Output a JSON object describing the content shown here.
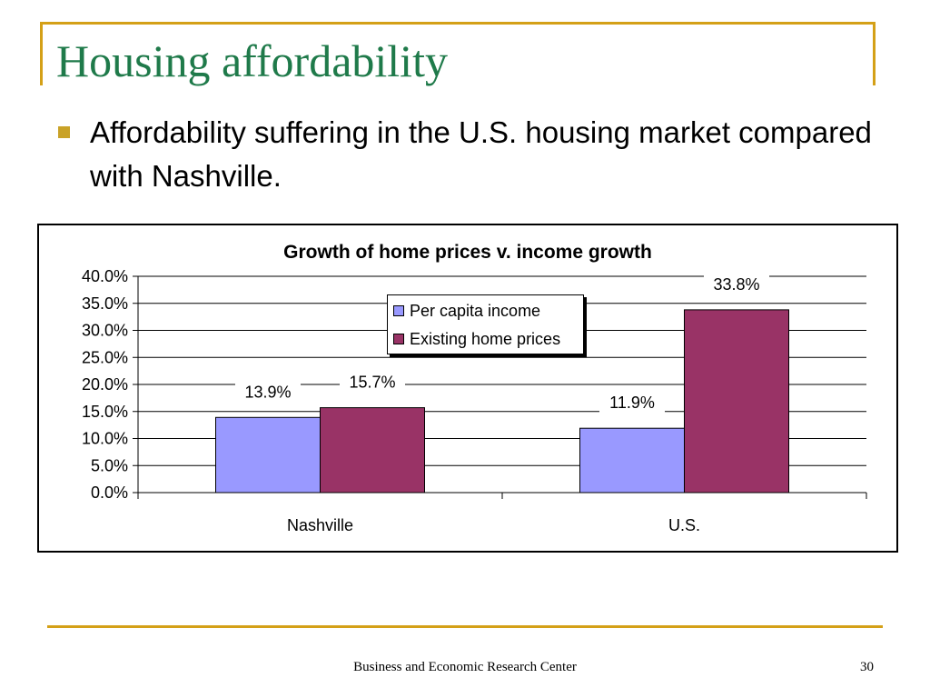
{
  "slide": {
    "title": "Housing affordability",
    "bullet": "Affordability suffering in the U.S. housing market compared with Nashville.",
    "footer": "Business and Economic Research Center",
    "page_number": "30"
  },
  "colors": {
    "title": "#1f7a4a",
    "accent_rule": "#d4a017",
    "bullet": "#c9a227"
  },
  "chart_data": {
    "type": "bar",
    "title": "Growth of home prices v. income growth",
    "categories": [
      "Nashville",
      "U.S."
    ],
    "series": [
      {
        "name": "Per capita income",
        "values": [
          13.9,
          11.9
        ],
        "labels": [
          "13.9%",
          "11.9%"
        ],
        "color": "#9999ff"
      },
      {
        "name": "Existing home prices",
        "values": [
          15.7,
          33.8
        ],
        "labels": [
          "15.7%",
          "33.8%"
        ],
        "color": "#993366"
      }
    ],
    "ylim": [
      0,
      40
    ],
    "yticks": [
      0,
      5,
      10,
      15,
      20,
      25,
      30,
      35,
      40
    ],
    "ytick_labels": [
      "0.0%",
      "5.0%",
      "10.0%",
      "15.0%",
      "20.0%",
      "25.0%",
      "30.0%",
      "35.0%",
      "40.0%"
    ],
    "xlabel": "",
    "ylabel": "",
    "grid": true,
    "legend_position": "top-center"
  }
}
